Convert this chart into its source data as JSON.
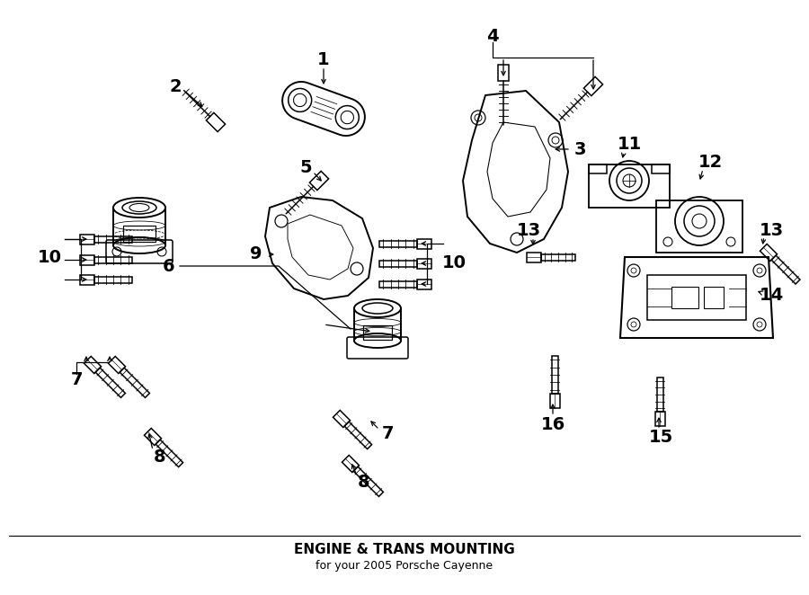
{
  "title": "ENGINE & TRANS MOUNTING",
  "subtitle": "for your 2005 Porsche Cayenne",
  "bg_color": "#ffffff",
  "figsize": [
    9.0,
    6.62
  ],
  "dpi": 100,
  "label_fs": 14,
  "lw": 1.1
}
